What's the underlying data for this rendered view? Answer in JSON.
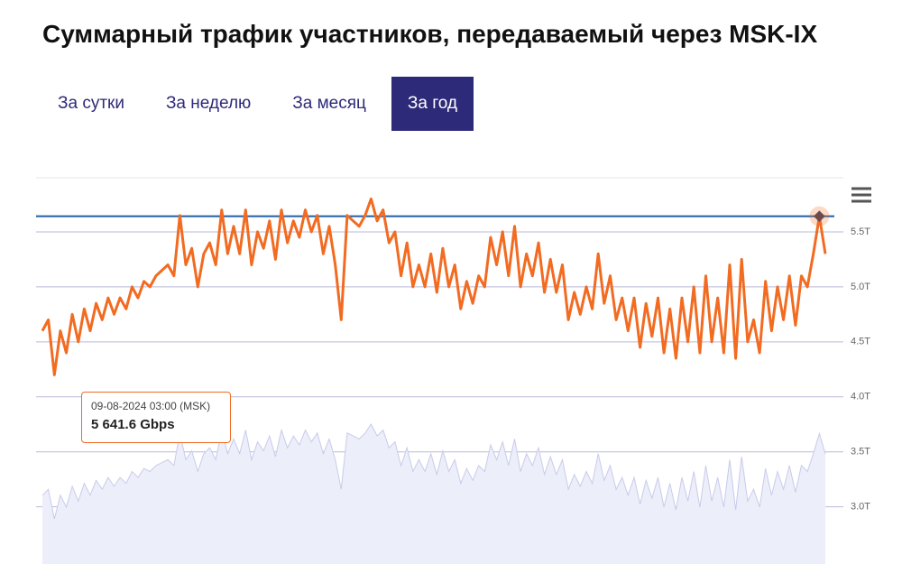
{
  "header": {
    "title": "Суммарный трафик участников, передаваемый через MSK-IX"
  },
  "tabs": {
    "items": [
      "За сутки",
      "За неделю",
      "За месяц",
      "За год"
    ],
    "active": 3
  },
  "chart_data": {
    "type": "line",
    "series": [
      {
        "color": "#f26b21",
        "values": [
          4.6,
          4.7,
          4.2,
          4.6,
          4.4,
          4.75,
          4.5,
          4.8,
          4.6,
          4.85,
          4.7,
          4.9,
          4.75,
          4.9,
          4.8,
          5.0,
          4.9,
          5.05,
          5.0,
          5.1,
          5.15,
          5.2,
          5.1,
          5.65,
          5.2,
          5.35,
          5.0,
          5.3,
          5.4,
          5.2,
          5.7,
          5.3,
          5.55,
          5.3,
          5.7,
          5.2,
          5.5,
          5.35,
          5.6,
          5.25,
          5.7,
          5.4,
          5.6,
          5.45,
          5.7,
          5.5,
          5.65,
          5.3,
          5.55,
          5.2,
          4.7,
          5.65,
          5.6,
          5.55,
          5.65,
          5.8,
          5.6,
          5.7,
          5.4,
          5.5,
          5.1,
          5.4,
          5.0,
          5.2,
          5.0,
          5.3,
          4.95,
          5.35,
          5.0,
          5.2,
          4.8,
          5.05,
          4.85,
          5.1,
          5.0,
          5.45,
          5.2,
          5.5,
          5.1,
          5.55,
          5.0,
          5.3,
          5.1,
          5.4,
          4.95,
          5.25,
          4.95,
          5.2,
          4.7,
          4.95,
          4.75,
          5.0,
          4.8,
          5.3,
          4.85,
          5.1,
          4.7,
          4.9,
          4.6,
          4.9,
          4.45,
          4.85,
          4.55,
          4.9,
          4.4,
          4.8,
          4.35,
          4.9,
          4.5,
          5.0,
          4.4,
          5.1,
          4.5,
          4.9,
          4.4,
          5.2,
          4.35,
          5.25,
          4.5,
          4.7,
          4.4,
          5.05,
          4.6,
          5.0,
          4.7,
          5.1,
          4.65,
          5.1,
          5.0,
          5.3,
          5.6416,
          5.3
        ]
      }
    ],
    "ylim": [
      2.8,
      6.0
    ],
    "yticks": [
      {
        "value": 3.0,
        "label": "3.0T"
      },
      {
        "value": 3.5,
        "label": "3.5T"
      },
      {
        "value": 4.0,
        "label": "4.0T"
      },
      {
        "value": 4.5,
        "label": "4.5T"
      },
      {
        "value": 5.0,
        "label": "5.0T"
      },
      {
        "value": 5.5,
        "label": "5.5T"
      }
    ],
    "grid": true,
    "tooltip": {
      "date": "09-08-2024 03:00 (MSK)",
      "value": 5.6416,
      "label": "5 641.6 Gbps"
    }
  }
}
